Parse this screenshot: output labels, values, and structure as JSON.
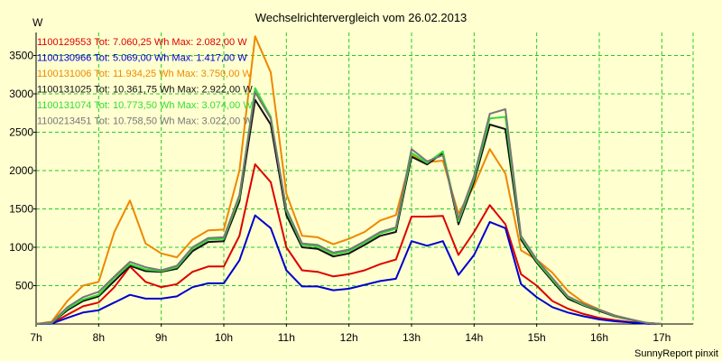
{
  "chart_data": {
    "type": "line",
    "title": "Wechselrichtervergleich vom 26.02.2013",
    "ylabel": "W",
    "xlabel": "",
    "footer": "SunnyReport pinxit",
    "xlim": [
      7,
      17.5
    ],
    "ylim": [
      0,
      3800
    ],
    "grid": true,
    "legend_position": "top-left",
    "x_ticks": [
      7,
      8,
      9,
      10,
      11,
      12,
      13,
      14,
      15,
      16,
      17
    ],
    "x_tick_labels": [
      "7h",
      "8h",
      "9h",
      "10h",
      "11h",
      "12h",
      "13h",
      "14h",
      "15h",
      "16h",
      "17h"
    ],
    "y_ticks": [
      500,
      1000,
      1500,
      2000,
      2500,
      3000,
      3500
    ],
    "y_tick_labels": [
      "500",
      "1000",
      "1500",
      "2000",
      "2500",
      "3000",
      "3500"
    ],
    "x": [
      7.0,
      7.25,
      7.5,
      7.75,
      8.0,
      8.25,
      8.5,
      8.75,
      9.0,
      9.25,
      9.5,
      9.75,
      10.0,
      10.25,
      10.5,
      10.75,
      11.0,
      11.25,
      11.5,
      11.75,
      12.0,
      12.25,
      12.5,
      12.75,
      13.0,
      13.25,
      13.5,
      13.75,
      14.0,
      14.25,
      14.5,
      14.75,
      15.0,
      15.25,
      15.5,
      15.75,
      16.0,
      16.25,
      16.5,
      16.75,
      17.0
    ],
    "series": [
      {
        "name": "1100129553",
        "label": "1100129553 Tot: 7.060,25 Wh Max: 2.082,00 W",
        "color": "#dd0000",
        "values": [
          0,
          10,
          120,
          230,
          280,
          480,
          750,
          550,
          480,
          520,
          680,
          750,
          750,
          1150,
          2082,
          1850,
          1000,
          700,
          680,
          620,
          650,
          700,
          780,
          840,
          1400,
          1400,
          1410,
          900,
          1200,
          1550,
          1300,
          650,
          500,
          300,
          200,
          130,
          80,
          50,
          25,
          5,
          0
        ]
      },
      {
        "name": "1100130966",
        "label": "1100130966 Tot: 5.069,00 Wh Max: 1.417,00 W",
        "color": "#0000cc",
        "values": [
          0,
          5,
          80,
          150,
          180,
          280,
          380,
          330,
          330,
          360,
          480,
          530,
          530,
          830,
          1417,
          1250,
          700,
          490,
          490,
          440,
          460,
          510,
          560,
          590,
          1080,
          1020,
          1080,
          640,
          900,
          1330,
          1250,
          520,
          350,
          220,
          150,
          100,
          60,
          35,
          20,
          5,
          0
        ]
      },
      {
        "name": "1100131006",
        "label": "1100131006 Tot: 11.934,25 Wh Max: 3.750,00 W",
        "color": "#ee8800",
        "values": [
          0,
          30,
          300,
          500,
          550,
          1200,
          1610,
          1050,
          920,
          870,
          1100,
          1220,
          1230,
          2000,
          3750,
          3280,
          1700,
          1150,
          1130,
          1040,
          1110,
          1200,
          1350,
          1420,
          2200,
          2110,
          2130,
          1440,
          1800,
          2280,
          1960,
          960,
          840,
          670,
          430,
          280,
          190,
          110,
          60,
          15,
          0
        ]
      },
      {
        "name": "1100131025",
        "label": "1100131025 Tot: 10.361,75 Wh Max: 2.922,00 W",
        "color": "#111111",
        "values": [
          0,
          15,
          180,
          300,
          360,
          560,
          760,
          690,
          680,
          720,
          950,
          1070,
          1080,
          1600,
          2922,
          2600,
          1420,
          1000,
          980,
          880,
          920,
          1030,
          1150,
          1200,
          2180,
          2080,
          2230,
          1300,
          1860,
          2600,
          2540,
          1100,
          800,
          560,
          330,
          240,
          170,
          100,
          55,
          15,
          0
        ]
      },
      {
        "name": "1100131074",
        "label": "1100131074 Tot: 10.773,50 Wh Max: 3.074,00 W",
        "color": "#33dd33",
        "values": [
          0,
          15,
          200,
          320,
          380,
          600,
          780,
          710,
          690,
          740,
          980,
          1100,
          1110,
          1650,
          3074,
          2700,
          1480,
          1030,
          1010,
          910,
          950,
          1060,
          1180,
          1240,
          2230,
          2100,
          2250,
          1340,
          1900,
          2680,
          2700,
          1130,
          820,
          580,
          350,
          250,
          180,
          105,
          60,
          15,
          0
        ]
      },
      {
        "name": "1100213451",
        "label": "1100213451 Tot: 10.758,50 Wh Max: 3.022,00 W",
        "color": "#777777",
        "values": [
          0,
          20,
          220,
          350,
          420,
          620,
          810,
          740,
          700,
          760,
          1000,
          1120,
          1130,
          1680,
          3022,
          2680,
          1500,
          1050,
          1030,
          930,
          970,
          1080,
          1200,
          1260,
          2280,
          2120,
          2200,
          1370,
          1930,
          2740,
          2800,
          1150,
          840,
          600,
          360,
          260,
          185,
          110,
          60,
          15,
          0
        ]
      }
    ]
  }
}
